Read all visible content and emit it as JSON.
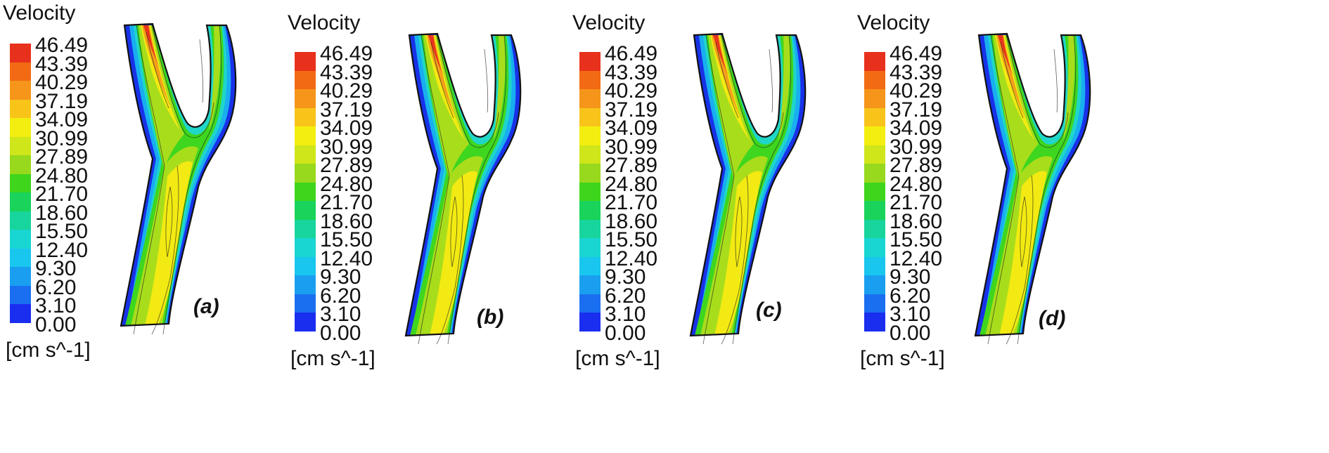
{
  "legend": {
    "title": "Velocity",
    "unit": "[cm s^-1]",
    "levels": [
      "46.49",
      "43.39",
      "40.29",
      "37.19",
      "34.09",
      "30.99",
      "27.89",
      "24.80",
      "21.70",
      "18.60",
      "15.50",
      "12.40",
      "9.30",
      "6.20",
      "3.10",
      "0.00"
    ],
    "colors": [
      "#e8311c",
      "#f26a13",
      "#f5951a",
      "#f8c41a",
      "#f4ee10",
      "#cfe61a",
      "#98d81d",
      "#3fd51c",
      "#19d35a",
      "#17d59c",
      "#19d6d2",
      "#19c6ee",
      "#1a9ff0",
      "#1a6ff0",
      "#1a2ef0"
    ]
  },
  "vessel_colors": {
    "outer": "#1832e8",
    "mid_blue": "#18aef0",
    "cyan": "#1fd6c8",
    "green": "#3ed61e",
    "lime": "#a8dd1c",
    "yellow": "#f2ea12",
    "orange": "#f3a01a",
    "red": "#e8351c",
    "outline": "#111111"
  },
  "panels": [
    {
      "label": "(a)"
    },
    {
      "label": "(b)"
    },
    {
      "label": "(c)"
    },
    {
      "label": "(d)"
    }
  ]
}
